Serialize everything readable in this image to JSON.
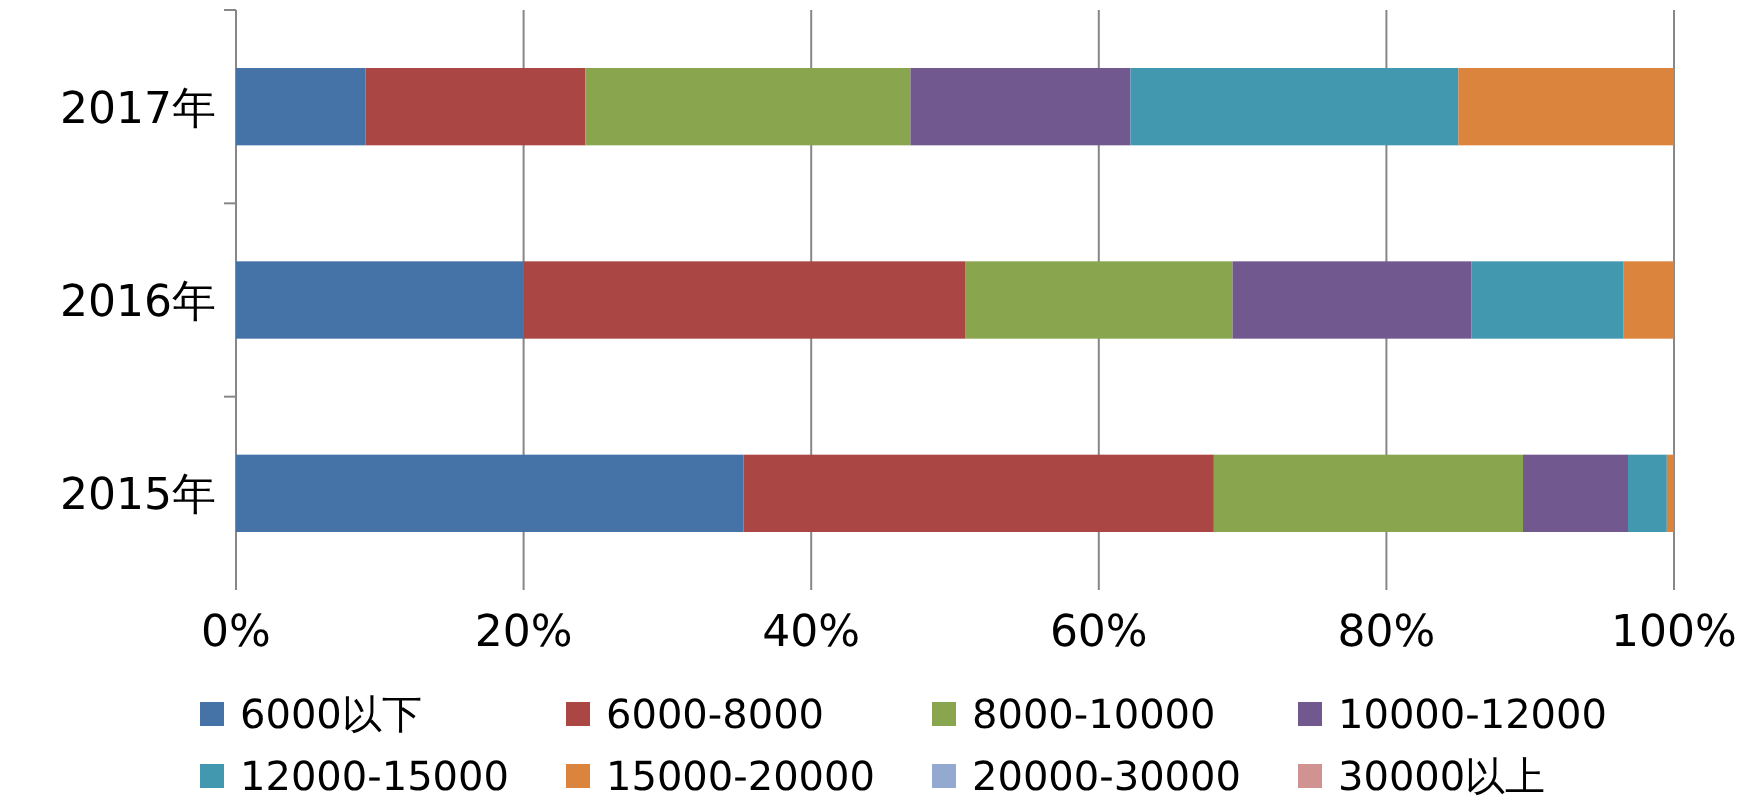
{
  "chart_data": {
    "type": "bar",
    "orientation": "horizontal",
    "stacked": true,
    "categories": [
      "2017年",
      "2016年",
      "2015年"
    ],
    "xlim": [
      0,
      100
    ],
    "xticks": [
      {
        "value": 0,
        "label": "0%"
      },
      {
        "value": 20,
        "label": "20%"
      },
      {
        "value": 40,
        "label": "40%"
      },
      {
        "value": 60,
        "label": "60%"
      },
      {
        "value": 80,
        "label": "80%"
      },
      {
        "value": 100,
        "label": "100%"
      }
    ],
    "grid": "x",
    "legend": "bottom",
    "series": [
      {
        "name": "6000以下",
        "color": "#4572a7",
        "values": [
          9.0,
          20.0,
          35.3
        ]
      },
      {
        "name": "6000-8000",
        "color": "#aa4643",
        "values": [
          15.3,
          30.7,
          32.7
        ]
      },
      {
        "name": "8000-10000",
        "color": "#89a54e",
        "values": [
          22.6,
          18.6,
          21.5
        ]
      },
      {
        "name": "10000-12000",
        "color": "#71588f",
        "values": [
          15.3,
          16.6,
          7.3
        ]
      },
      {
        "name": "12000-15000",
        "color": "#4198af",
        "values": [
          22.8,
          10.6,
          2.7
        ]
      },
      {
        "name": "15000-20000",
        "color": "#db843d",
        "values": [
          15.0,
          3.5,
          0.5
        ]
      },
      {
        "name": "20000-30000",
        "color": "#93a9cf",
        "values": [
          0,
          0,
          0
        ]
      },
      {
        "name": "30000以上",
        "color": "#d19392",
        "values": [
          0,
          0,
          0
        ]
      }
    ]
  }
}
